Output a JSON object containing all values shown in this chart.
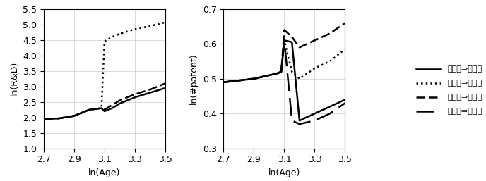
{
  "left_chart": {
    "ylabel": "ln(R&D)",
    "xlabel": "ln(Age)",
    "xlim": [
      2.7,
      3.5
    ],
    "ylim": [
      1.0,
      5.5
    ],
    "yticks": [
      1.0,
      1.5,
      2.0,
      2.5,
      3.0,
      3.5,
      4.0,
      4.5,
      5.0,
      5.5
    ],
    "xticks": [
      2.7,
      2.9,
      3.1,
      3.3,
      3.5
    ],
    "series": {
      "solid": {
        "x": [
          2.7,
          2.8,
          2.9,
          2.95,
          3.0,
          3.05,
          3.08,
          3.1,
          3.15,
          3.2,
          3.3,
          3.4,
          3.5
        ],
        "y": [
          1.95,
          1.97,
          2.05,
          2.15,
          2.25,
          2.28,
          2.3,
          2.2,
          2.3,
          2.45,
          2.65,
          2.8,
          2.95
        ]
      },
      "dotted": {
        "x": [
          2.7,
          2.8,
          2.9,
          2.95,
          3.0,
          3.05,
          3.08,
          3.1,
          3.15,
          3.2,
          3.3,
          3.4,
          3.5
        ],
        "y": [
          1.95,
          1.97,
          2.05,
          2.15,
          2.25,
          2.28,
          2.3,
          4.45,
          4.6,
          4.7,
          4.85,
          4.95,
          5.07
        ]
      },
      "dash_dense": {
        "x": [
          2.7,
          2.8,
          2.9,
          2.95,
          3.0,
          3.05,
          3.08,
          3.1,
          3.15,
          3.2,
          3.3,
          3.4,
          3.5
        ],
        "y": [
          1.95,
          1.97,
          2.05,
          2.15,
          2.25,
          2.28,
          2.3,
          2.25,
          2.4,
          2.55,
          2.75,
          2.9,
          3.1
        ]
      }
    }
  },
  "right_chart": {
    "ylabel": "ln(#patent)",
    "xlabel": "ln(Age)",
    "xlim": [
      2.7,
      3.5
    ],
    "ylim": [
      0.3,
      0.7
    ],
    "yticks": [
      0.3,
      0.4,
      0.5,
      0.6,
      0.7
    ],
    "xticks": [
      2.7,
      2.9,
      3.1,
      3.3,
      3.5
    ],
    "series": {
      "solid": {
        "x": [
          2.7,
          2.8,
          2.9,
          2.95,
          3.0,
          3.05,
          3.08,
          3.1,
          3.15,
          3.2,
          3.3,
          3.4,
          3.5
        ],
        "y": [
          0.49,
          0.495,
          0.5,
          0.505,
          0.51,
          0.515,
          0.52,
          0.61,
          0.605,
          0.38,
          0.4,
          0.42,
          0.44
        ]
      },
      "dotted": {
        "x": [
          2.7,
          2.8,
          2.9,
          2.95,
          3.0,
          3.05,
          3.08,
          3.1,
          3.15,
          3.2,
          3.3,
          3.4,
          3.5
        ],
        "y": [
          0.49,
          0.495,
          0.5,
          0.505,
          0.51,
          0.515,
          0.52,
          0.61,
          0.52,
          0.5,
          0.53,
          0.55,
          0.585
        ]
      },
      "dash_dense": {
        "x": [
          2.7,
          2.8,
          2.9,
          2.95,
          3.0,
          3.05,
          3.08,
          3.1,
          3.15,
          3.2,
          3.3,
          3.4,
          3.5
        ],
        "y": [
          0.49,
          0.495,
          0.5,
          0.505,
          0.51,
          0.515,
          0.52,
          0.64,
          0.62,
          0.59,
          0.61,
          0.63,
          0.66
        ]
      },
      "dash_sparse": {
        "x": [
          2.7,
          2.8,
          2.9,
          2.95,
          3.0,
          3.05,
          3.08,
          3.1,
          3.15,
          3.2,
          3.3,
          3.4,
          3.5
        ],
        "y": [
          0.49,
          0.495,
          0.5,
          0.505,
          0.51,
          0.515,
          0.52,
          0.61,
          0.38,
          0.37,
          0.38,
          0.4,
          0.43
        ]
      }
    }
  },
  "legend_labels": [
    "同業種⇒同業種",
    "同業種⇒異業種",
    "異業種⇒同業種",
    "異業種⇒異業種"
  ],
  "line_color": "#000000",
  "line_width": 1.8,
  "grid_color": "#cccccc",
  "font_size": 9,
  "label_font_size": 9
}
